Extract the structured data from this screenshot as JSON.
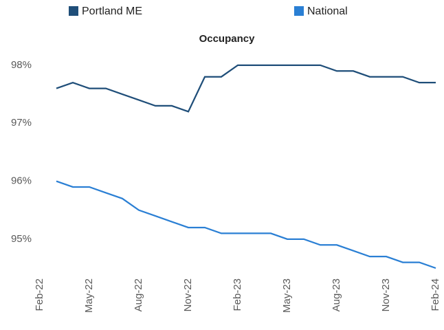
{
  "chart_data": {
    "type": "line",
    "title": "Occupancy",
    "categories": [
      "Feb-22",
      null,
      null,
      "May-22",
      null,
      null,
      "Aug-22",
      null,
      null,
      "Nov-22",
      null,
      null,
      "Feb-23",
      null,
      null,
      "May-23",
      null,
      null,
      "Aug-23",
      null,
      null,
      "Nov-23",
      null,
      null,
      "Feb-24"
    ],
    "series": [
      {
        "name": "Portland ME",
        "color": "#1f4e79",
        "values": [
          null,
          97.6,
          97.7,
          97.6,
          97.6,
          97.5,
          97.4,
          97.3,
          97.3,
          97.2,
          97.8,
          97.8,
          98.0,
          98.0,
          98.0,
          98.0,
          98.0,
          98.0,
          97.9,
          97.9,
          97.8,
          97.8,
          97.8,
          97.7,
          97.7
        ]
      },
      {
        "name": "National",
        "color": "#2a7fd4",
        "values": [
          null,
          96.0,
          95.9,
          95.9,
          95.8,
          95.7,
          95.5,
          95.4,
          95.3,
          95.2,
          95.2,
          95.1,
          95.1,
          95.1,
          95.1,
          95.0,
          95.0,
          94.9,
          94.9,
          94.8,
          94.7,
          94.7,
          94.6,
          94.6,
          94.5
        ]
      }
    ],
    "ylim": [
      94.5,
      98.2
    ],
    "yticks": [
      {
        "value": 95,
        "label": "95%"
      },
      {
        "value": 96,
        "label": "96%"
      },
      {
        "value": 97,
        "label": "97%"
      },
      {
        "value": 98,
        "label": "98%"
      }
    ],
    "grid": false,
    "legend": "top"
  }
}
